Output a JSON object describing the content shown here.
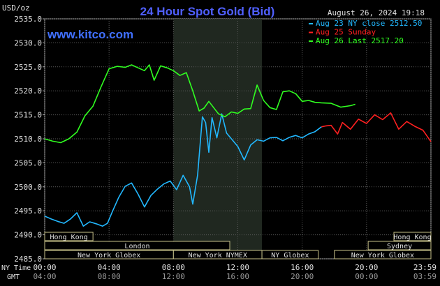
{
  "title": "24 Hour Spot Gold (Bid)",
  "y_unit": "USD/oz",
  "website": "www.kitco.com",
  "timestamp": "August 26, 2024 19:18",
  "legend": [
    {
      "label": "Aug 23 NY close 2512.50",
      "color": "#22b8ff"
    },
    {
      "label": "Aug 25 Sunday",
      "color": "#ff2020"
    },
    {
      "label": "Aug 26 Last 2517.20",
      "color": "#30ff20"
    }
  ],
  "x_row_label_1": "NY Time",
  "x_row_label_2": "GMT",
  "x_ticks_ny": [
    "00:00",
    "04:00",
    "08:00",
    "12:00",
    "16:00",
    "20:00",
    "23:59"
  ],
  "x_ticks_gmt": [
    "04:00",
    "08:00",
    "12:00",
    "16:00",
    "20:00",
    "00:00",
    "03:59"
  ],
  "y_ticks": [
    "2535.0",
    "2530.0",
    "2525.0",
    "2520.0",
    "2515.0",
    "2510.0",
    "2505.0",
    "2500.0",
    "2495.0",
    "2490.0",
    "2485.0"
  ],
  "sessions": [
    {
      "label": "Hong Kong",
      "start_h": 0.0,
      "end_h": 3.0,
      "row": 0
    },
    {
      "label": "Hong Kong",
      "start_h": 21.7,
      "end_h": 24.0,
      "row": 0
    },
    {
      "label": "London",
      "start_h": 0.0,
      "end_h": 11.5,
      "row": 1
    },
    {
      "label": "Sydney",
      "start_h": 20.1,
      "end_h": 24.0,
      "row": 1
    },
    {
      "label": "New York Globex",
      "start_h": 0.0,
      "end_h": 8.0,
      "row": 2
    },
    {
      "label": "New York NYMEX",
      "start_h": 8.0,
      "end_h": 13.5,
      "row": 2
    },
    {
      "label": "NY Globex",
      "start_h": 13.5,
      "end_h": 17.0,
      "row": 2
    },
    {
      "label": "New York Globex",
      "start_h": 18.0,
      "end_h": 24.0,
      "row": 2
    }
  ],
  "chart_data": {
    "type": "line",
    "title": "24 Hour Spot Gold (Bid)",
    "ylabel": "USD/oz",
    "xlabel": "NY Time / GMT",
    "ylim": [
      2485.0,
      2535.0
    ],
    "xlim_hours": [
      0,
      24
    ],
    "highlight_hours": [
      8.0,
      13.5
    ],
    "series": [
      {
        "name": "Aug 23 NY close 2512.50",
        "color": "#22b8ff",
        "x": [
          0,
          0.4,
          0.8,
          1.2,
          1.6,
          2.0,
          2.4,
          2.8,
          3.2,
          3.6,
          3.9,
          4.2,
          4.6,
          5.0,
          5.4,
          5.8,
          6.2,
          6.6,
          7.0,
          7.4,
          7.8,
          8.2,
          8.6,
          9.0,
          9.2,
          9.5,
          9.8,
          10.0,
          10.2,
          10.4,
          10.7,
          11.0,
          11.3,
          11.6,
          12.0,
          12.4,
          12.8,
          13.2,
          13.6,
          14.0,
          14.4,
          14.8,
          15.2,
          15.6,
          16.0,
          16.4,
          16.8,
          17.2
        ],
        "y": [
          2493.9,
          2493.3,
          2492.8,
          2492.4,
          2493.3,
          2494.6,
          2491.8,
          2492.7,
          2492.3,
          2491.8,
          2492.4,
          2494.8,
          2497.8,
          2500.1,
          2500.8,
          2498.5,
          2495.8,
          2498.2,
          2499.5,
          2500.6,
          2501.2,
          2499.4,
          2502.4,
          2500.0,
          2496.4,
          2502.4,
          2514.6,
          2513.4,
          2507.2,
          2514.4,
          2510.2,
          2515.2,
          2511.2,
          2510.0,
          2508.4,
          2505.6,
          2508.7,
          2509.8,
          2509.5,
          2510.2,
          2510.3,
          2509.6,
          2510.3,
          2510.7,
          2510.2,
          2511.0,
          2511.5,
          2512.5
        ]
      },
      {
        "name": "Aug 25 Sunday",
        "color": "#ff2020",
        "x": [
          17.2,
          17.5,
          17.8,
          18.2,
          18.5,
          19.0,
          19.5,
          20.0,
          20.5,
          21.0,
          21.5,
          22.0,
          22.5,
          23.0,
          23.5,
          24.0
        ],
        "y": [
          2512.5,
          2512.7,
          2512.8,
          2511.0,
          2513.4,
          2512.0,
          2514.1,
          2513.2,
          2515.0,
          2514.0,
          2515.4,
          2512.0,
          2513.6,
          2512.6,
          2511.8,
          2509.4
        ]
      },
      {
        "name": "Aug 26 Last 2517.20",
        "color": "#30ff20",
        "x": [
          0,
          0.5,
          1.0,
          1.5,
          2.0,
          2.5,
          3.0,
          3.5,
          4.0,
          4.5,
          5.0,
          5.4,
          5.8,
          6.2,
          6.5,
          6.8,
          7.2,
          7.6,
          8.0,
          8.4,
          8.8,
          9.2,
          9.6,
          9.9,
          10.2,
          10.5,
          10.8,
          11.2,
          11.6,
          12.0,
          12.4,
          12.8,
          13.2,
          13.6,
          14.0,
          14.4,
          14.8,
          15.2,
          15.6,
          16.0,
          16.4,
          16.8,
          17.2,
          17.8,
          18.4,
          19.0,
          19.3
        ],
        "y": [
          2510.0,
          2509.5,
          2509.2,
          2510.0,
          2511.4,
          2514.8,
          2516.8,
          2520.8,
          2524.6,
          2525.1,
          2524.9,
          2525.4,
          2524.8,
          2524.2,
          2525.4,
          2522.2,
          2525.2,
          2524.8,
          2524.2,
          2523.2,
          2523.8,
          2520.0,
          2515.8,
          2516.4,
          2517.8,
          2516.5,
          2515.2,
          2514.6,
          2515.6,
          2515.3,
          2516.2,
          2516.3,
          2521.2,
          2518.0,
          2516.5,
          2516.1,
          2519.8,
          2520.0,
          2519.4,
          2517.8,
          2518.0,
          2517.6,
          2517.5,
          2517.4,
          2516.6,
          2516.9,
          2517.2
        ]
      }
    ],
    "grid": true,
    "legend_position": "top-right"
  }
}
